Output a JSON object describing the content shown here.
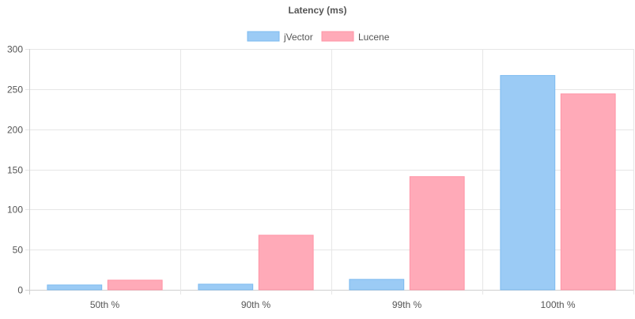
{
  "chart_data": {
    "type": "bar",
    "title": "Latency (ms)",
    "categories": [
      "50th %",
      "90th %",
      "99th %",
      "100th %"
    ],
    "series": [
      {
        "name": "jVector",
        "values": [
          6,
          7,
          13,
          267
        ],
        "color": "#9BCBF5",
        "border": "#7DBBF0"
      },
      {
        "name": "Lucene",
        "values": [
          12,
          68,
          141,
          244
        ],
        "color": "#FFAAB8",
        "border": "#FF94A6"
      }
    ],
    "ylim": [
      0,
      300
    ],
    "yticks": [
      0,
      50,
      100,
      150,
      200,
      250,
      300
    ],
    "grid": true,
    "legend_position": "top-center"
  }
}
